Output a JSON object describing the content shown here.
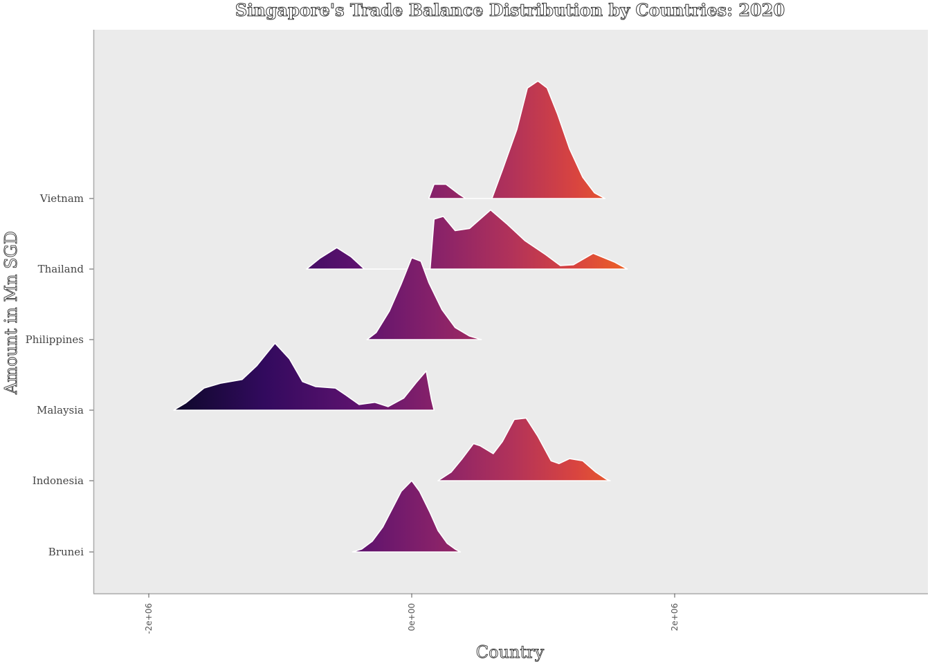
{
  "chart_data": {
    "type": "ridgeline",
    "title": "Singapore's Trade Balance Distribution by Countries: 2020",
    "xlabel": "Country",
    "ylabel": "Amount in Mn SGD",
    "xlim": [
      -3000000,
      4000000
    ],
    "x_ticks": [
      {
        "value": -2000000,
        "label": "-2e+06"
      },
      {
        "value": 0,
        "label": "0e+00"
      },
      {
        "value": 2000000,
        "label": "2e+06"
      }
    ],
    "categories": [
      "Brunei",
      "Indonesia",
      "Malaysia",
      "Philippines",
      "Thailand",
      "Vietnam"
    ],
    "grid": false,
    "legend": "none",
    "background": "#ebebeb",
    "color_scale": {
      "name": "inferno",
      "low": "#0d0829",
      "mid": "#892269",
      "high": "#e8612c"
    },
    "series": [
      {
        "name": "Brunei",
        "points": [
          [
            -450000,
            0
          ],
          [
            -380000,
            0.04
          ],
          [
            -300000,
            0.15
          ],
          [
            -220000,
            0.35
          ],
          [
            -150000,
            0.6
          ],
          [
            -80000,
            0.85
          ],
          [
            0,
            1
          ],
          [
            60000,
            0.85
          ],
          [
            140000,
            0.55
          ],
          [
            200000,
            0.3
          ],
          [
            270000,
            0.12
          ],
          [
            330000,
            0.04
          ],
          [
            370000,
            0
          ]
        ]
      },
      {
        "name": "Indonesia",
        "points": [
          [
            200000,
            0
          ],
          [
            300000,
            0.12
          ],
          [
            380000,
            0.3
          ],
          [
            470000,
            0.52
          ],
          [
            520000,
            0.49
          ],
          [
            620000,
            0.38
          ],
          [
            690000,
            0.55
          ],
          [
            780000,
            0.86
          ],
          [
            870000,
            0.88
          ],
          [
            960000,
            0.62
          ],
          [
            1060000,
            0.28
          ],
          [
            1120000,
            0.24
          ],
          [
            1200000,
            0.31
          ],
          [
            1300000,
            0.28
          ],
          [
            1400000,
            0.12
          ],
          [
            1480000,
            0.02
          ],
          [
            1510000,
            0
          ]
        ]
      },
      {
        "name": "Malaysia",
        "points": [
          [
            -1810000,
            0
          ],
          [
            -1720000,
            0.1
          ],
          [
            -1580000,
            0.31
          ],
          [
            -1450000,
            0.38
          ],
          [
            -1290000,
            0.43
          ],
          [
            -1180000,
            0.62
          ],
          [
            -1040000,
            0.94
          ],
          [
            -930000,
            0.72
          ],
          [
            -830000,
            0.4
          ],
          [
            -730000,
            0.33
          ],
          [
            -580000,
            0.31
          ],
          [
            -500000,
            0.21
          ],
          [
            -400000,
            0.08
          ],
          [
            -280000,
            0.11
          ],
          [
            -180000,
            0.05
          ],
          [
            -60000,
            0.17
          ],
          [
            40000,
            0.4
          ],
          [
            110000,
            0.55
          ],
          [
            150000,
            0.15
          ],
          [
            170000,
            0
          ]
        ]
      },
      {
        "name": "Philippines",
        "points": [
          [
            -340000,
            0
          ],
          [
            -270000,
            0.1
          ],
          [
            -170000,
            0.4
          ],
          [
            -80000,
            0.78
          ],
          [
            0,
            1.15
          ],
          [
            70000,
            1.1
          ],
          [
            130000,
            0.8
          ],
          [
            230000,
            0.42
          ],
          [
            330000,
            0.17
          ],
          [
            440000,
            0.05
          ],
          [
            530000,
            0
          ]
        ]
      },
      {
        "name": "Thailand",
        "points": [
          [
            -800000,
            0
          ],
          [
            -700000,
            0.15
          ],
          [
            -570000,
            0.3
          ],
          [
            -460000,
            0.17
          ],
          [
            -360000,
            0
          ],
          [
            140000,
            0
          ],
          [
            170000,
            0.7
          ],
          [
            240000,
            0.74
          ],
          [
            330000,
            0.54
          ],
          [
            440000,
            0.57
          ],
          [
            600000,
            0.83
          ],
          [
            720000,
            0.64
          ],
          [
            860000,
            0.4
          ],
          [
            1020000,
            0.2
          ],
          [
            1130000,
            0.05
          ],
          [
            1230000,
            0.06
          ],
          [
            1380000,
            0.22
          ],
          [
            1540000,
            0.1
          ],
          [
            1640000,
            0
          ]
        ]
      },
      {
        "name": "Vietnam",
        "points": [
          [
            130000,
            0
          ],
          [
            170000,
            0.2
          ],
          [
            260000,
            0.2
          ],
          [
            360000,
            0.06
          ],
          [
            410000,
            0
          ],
          [
            610000,
            0
          ],
          [
            690000,
            0.4
          ],
          [
            800000,
            0.97
          ],
          [
            880000,
            1.55
          ],
          [
            960000,
            1.65
          ],
          [
            1030000,
            1.55
          ],
          [
            1110000,
            1.18
          ],
          [
            1200000,
            0.7
          ],
          [
            1300000,
            0.3
          ],
          [
            1390000,
            0.08
          ],
          [
            1470000,
            0
          ]
        ]
      }
    ]
  }
}
